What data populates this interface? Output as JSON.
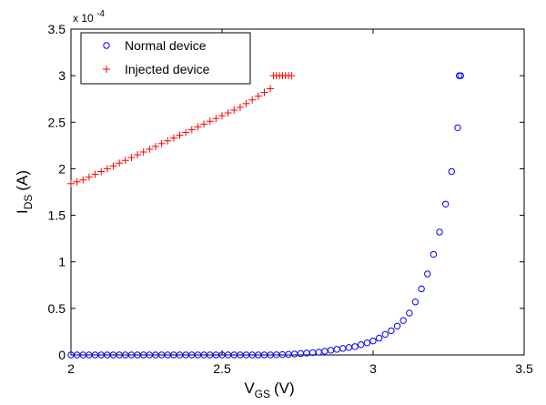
{
  "chart_data": {
    "type": "scatter",
    "xlabel": {
      "main": "V",
      "sub": "GS",
      "unit": "(V)"
    },
    "ylabel": {
      "main": "I",
      "sub": "DS",
      "unit": "(A)"
    },
    "y_multiplier": {
      "base": "x 10",
      "exp": "-4"
    },
    "xlim": [
      2,
      3.5
    ],
    "ylim": [
      0,
      3.5
    ],
    "x_ticks": [
      "2",
      "2.5",
      "3",
      "3.5"
    ],
    "y_ticks": [
      "0",
      "0.5",
      "1",
      "1.5",
      "2",
      "2.5",
      "3",
      "3.5"
    ],
    "grid": false,
    "legend": "top-left",
    "series": [
      {
        "name": "Normal device",
        "marker": "circle",
        "color": "#0000ff",
        "x": [
          2.0,
          2.02,
          2.04,
          2.06,
          2.08,
          2.1,
          2.12,
          2.14,
          2.16,
          2.18,
          2.2,
          2.22,
          2.24,
          2.26,
          2.28,
          2.3,
          2.32,
          2.34,
          2.36,
          2.38,
          2.4,
          2.42,
          2.44,
          2.46,
          2.48,
          2.5,
          2.52,
          2.54,
          2.56,
          2.58,
          2.6,
          2.62,
          2.64,
          2.66,
          2.68,
          2.7,
          2.72,
          2.74,
          2.76,
          2.78,
          2.8,
          2.82,
          2.84,
          2.86,
          2.88,
          2.9,
          2.92,
          2.94,
          2.96,
          2.98,
          3.0,
          3.02,
          3.04,
          3.06,
          3.08,
          3.1,
          3.12,
          3.14,
          3.16,
          3.18,
          3.2,
          3.22,
          3.24,
          3.26,
          3.28,
          3.285
        ],
        "y": [
          0,
          0,
          0,
          0,
          0,
          0,
          0,
          0,
          0,
          0,
          0,
          0,
          0,
          0,
          0,
          0,
          0,
          0,
          0,
          0,
          0,
          0,
          0,
          0,
          0,
          0,
          0,
          0,
          0,
          0,
          0,
          0,
          0,
          0,
          0.002,
          0.004,
          0.006,
          0.01,
          0.015,
          0.02,
          0.025,
          0.03,
          0.04,
          0.05,
          0.06,
          0.07,
          0.08,
          0.09,
          0.11,
          0.13,
          0.15,
          0.18,
          0.22,
          0.26,
          0.31,
          0.37,
          0.45,
          0.57,
          0.71,
          0.87,
          1.08,
          1.32,
          1.62,
          1.97,
          2.44,
          3.0
        ],
        "extra_points": [
          [
            3.29,
            3.0
          ]
        ]
      },
      {
        "name": "Injected device",
        "marker": "plus",
        "color": "#ff0000",
        "x": [
          2.0,
          2.02,
          2.04,
          2.06,
          2.08,
          2.1,
          2.12,
          2.14,
          2.16,
          2.18,
          2.2,
          2.22,
          2.24,
          2.26,
          2.28,
          2.3,
          2.32,
          2.34,
          2.36,
          2.38,
          2.4,
          2.42,
          2.44,
          2.46,
          2.48,
          2.5,
          2.52,
          2.54,
          2.56,
          2.58,
          2.6,
          2.62,
          2.64,
          2.66,
          2.67,
          2.68,
          2.69,
          2.7,
          2.71,
          2.72,
          2.73
        ],
        "y": [
          1.84,
          1.86,
          1.88,
          1.91,
          1.94,
          1.97,
          2.0,
          2.03,
          2.06,
          2.09,
          2.12,
          2.15,
          2.18,
          2.21,
          2.24,
          2.27,
          2.3,
          2.33,
          2.36,
          2.39,
          2.42,
          2.45,
          2.48,
          2.51,
          2.54,
          2.57,
          2.6,
          2.63,
          2.66,
          2.7,
          2.74,
          2.78,
          2.82,
          2.86,
          3.0,
          3.0,
          3.0,
          3.0,
          3.0,
          3.0,
          3.0
        ]
      }
    ]
  }
}
